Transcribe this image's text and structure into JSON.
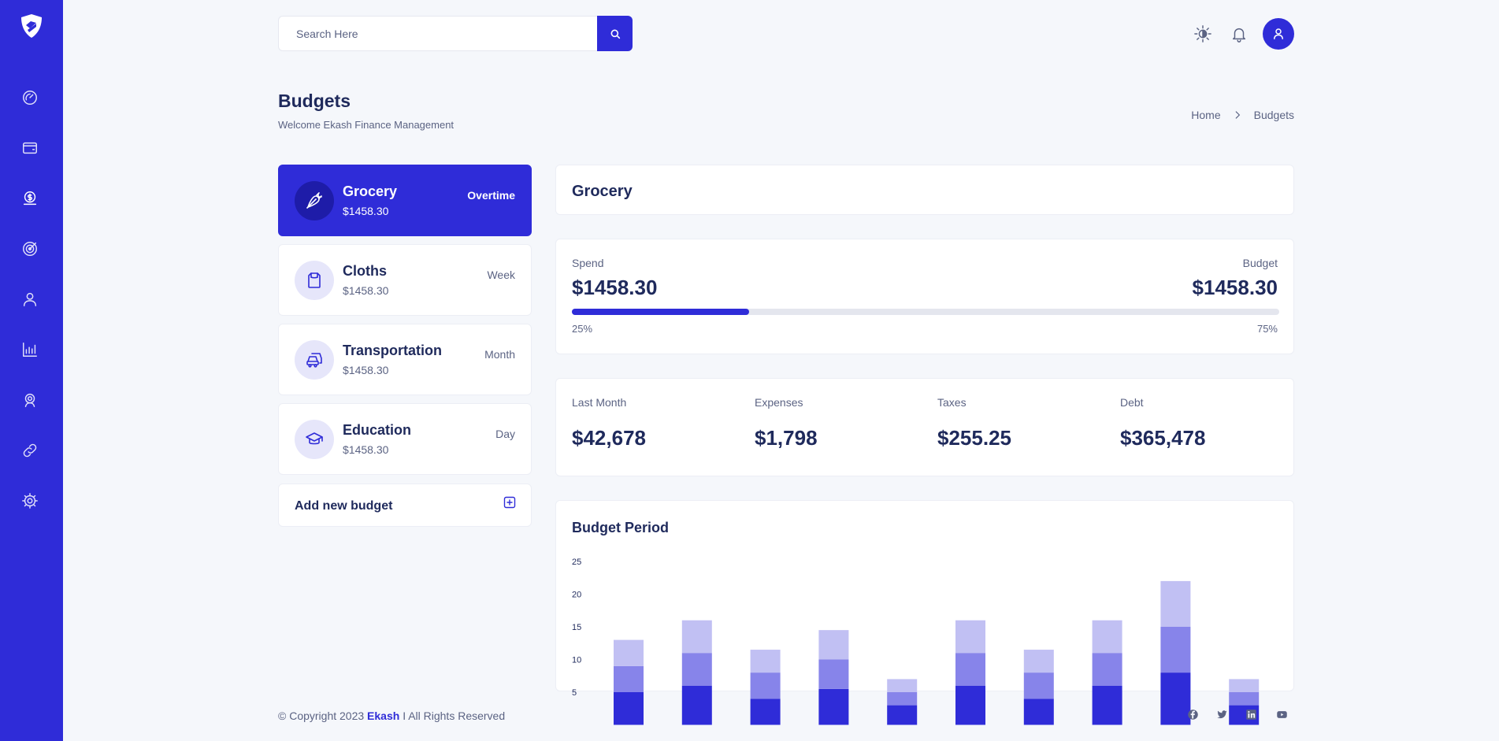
{
  "search": {
    "placeholder": "Search Here"
  },
  "header": {
    "title": "Budgets",
    "subtitle": "Welcome Ekash Finance Management"
  },
  "breadcrumb": {
    "home": "Home",
    "current": "Budgets"
  },
  "budgets": [
    {
      "name": "Grocery",
      "amount": "$1458.30",
      "period": "Overtime",
      "icon": "carrot-icon",
      "active": true
    },
    {
      "name": "Cloths",
      "amount": "$1458.30",
      "period": "Week",
      "icon": "shirt-icon",
      "active": false
    },
    {
      "name": "Transportation",
      "amount": "$1458.30",
      "period": "Month",
      "icon": "car-icon",
      "active": false
    },
    {
      "name": "Education",
      "amount": "$1458.30",
      "period": "Day",
      "icon": "graduation-cap-icon",
      "active": false
    }
  ],
  "add_budget": {
    "label": "Add new budget"
  },
  "detail": {
    "title": "Grocery",
    "spend_label": "Spend",
    "spend_value": "$1458.30",
    "budget_label": "Budget",
    "budget_value": "$1458.30",
    "progress_left": "25%",
    "progress_right": "75%",
    "progress_fraction": 0.25
  },
  "stats": [
    {
      "label": "Last Month",
      "value": "$42,678"
    },
    {
      "label": "Expenses",
      "value": "$1,798"
    },
    {
      "label": "Taxes",
      "value": "$255.25"
    },
    {
      "label": "Debt",
      "value": "$365,478"
    }
  ],
  "chart_data": {
    "type": "bar",
    "stacked": true,
    "title": "Budget Period",
    "ylim": [
      0,
      25
    ],
    "yticks": [
      "25",
      "20",
      "15",
      "10",
      "5"
    ],
    "series": [
      {
        "values": [
          5,
          6,
          4,
          5.5,
          3,
          6,
          4,
          6,
          8,
          3
        ],
        "color": "#2f2cd8"
      },
      {
        "values": [
          4,
          5,
          4,
          4.5,
          2,
          5,
          4,
          5,
          7,
          2
        ],
        "color": "#8784ea"
      },
      {
        "values": [
          4,
          5,
          3.5,
          4.5,
          2,
          5,
          3.5,
          5,
          7,
          2
        ],
        "color": "#c1c0f3"
      }
    ]
  },
  "footer": {
    "prefix": "© Copyright 2023",
    "brand": "Ekash",
    "suffix": "I All Rights Reserved"
  },
  "colors": {
    "primary": "#2f2cd8",
    "text": "#1f2a5c",
    "muted": "#5b6383",
    "background": "#f5f7fb"
  }
}
